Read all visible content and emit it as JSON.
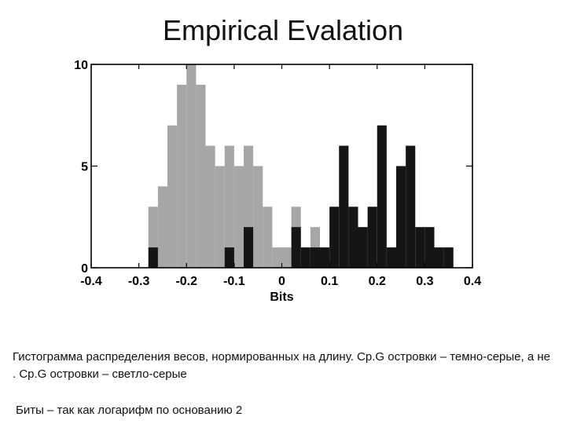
{
  "slide": {
    "title": "Empirical Evalation",
    "caption": "Гистограмма распределения весов, нормированных на длину. Cp.G островки – темно-серые, а не . Cp.G островки – светло-серые",
    "footnote": "Биты – так как логарифм по основанию 2"
  },
  "chart_data": {
    "type": "bar",
    "title": "",
    "xlabel": "Bits",
    "ylabel": "",
    "xlim": [
      -0.4,
      0.4
    ],
    "ylim": [
      0,
      10
    ],
    "xticks": [
      "-0.4",
      "-0.3",
      "-0.2",
      "-0.1",
      "0",
      "0.1",
      "0.2",
      "0.3",
      "0.4"
    ],
    "yticks": [
      "0",
      "5",
      "10"
    ],
    "bin_width": 0.02,
    "grid": false,
    "colors": {
      "light_gray": "#a6a6a6",
      "dark": "#151515"
    },
    "series": [
      {
        "color": "light_gray",
        "bins": [
          {
            "x": -0.27,
            "y": 3
          },
          {
            "x": -0.25,
            "y": 4
          },
          {
            "x": -0.23,
            "y": 7
          },
          {
            "x": -0.21,
            "y": 9
          },
          {
            "x": -0.19,
            "y": 10
          },
          {
            "x": -0.17,
            "y": 9
          },
          {
            "x": -0.15,
            "y": 6
          },
          {
            "x": -0.13,
            "y": 5
          },
          {
            "x": -0.11,
            "y": 6
          },
          {
            "x": -0.09,
            "y": 5
          },
          {
            "x": -0.07,
            "y": 6
          },
          {
            "x": -0.05,
            "y": 5
          },
          {
            "x": -0.03,
            "y": 3
          },
          {
            "x": -0.01,
            "y": 1
          },
          {
            "x": 0.01,
            "y": 1
          },
          {
            "x": 0.03,
            "y": 3
          },
          {
            "x": 0.07,
            "y": 2
          }
        ]
      },
      {
        "color": "dark",
        "bins": [
          {
            "x": -0.27,
            "y": 1
          },
          {
            "x": -0.11,
            "y": 1
          },
          {
            "x": -0.07,
            "y": 2
          },
          {
            "x": 0.03,
            "y": 2
          },
          {
            "x": 0.05,
            "y": 1
          },
          {
            "x": 0.07,
            "y": 1
          },
          {
            "x": 0.09,
            "y": 1
          },
          {
            "x": 0.11,
            "y": 3
          },
          {
            "x": 0.13,
            "y": 6
          },
          {
            "x": 0.15,
            "y": 3
          },
          {
            "x": 0.17,
            "y": 2
          },
          {
            "x": 0.19,
            "y": 3
          },
          {
            "x": 0.21,
            "y": 7
          },
          {
            "x": 0.23,
            "y": 1
          },
          {
            "x": 0.25,
            "y": 5
          },
          {
            "x": 0.27,
            "y": 6
          },
          {
            "x": 0.29,
            "y": 2
          },
          {
            "x": 0.31,
            "y": 2
          },
          {
            "x": 0.33,
            "y": 1
          },
          {
            "x": 0.35,
            "y": 1
          }
        ]
      }
    ]
  }
}
